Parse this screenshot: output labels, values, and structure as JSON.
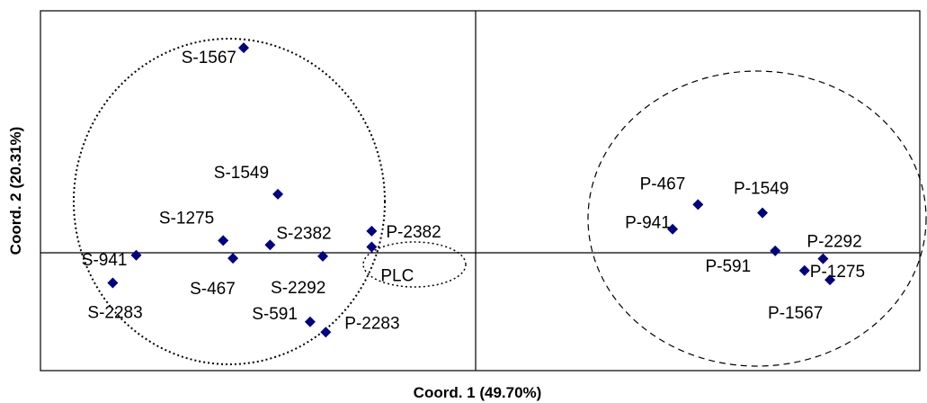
{
  "chart_data": {
    "type": "scatter",
    "xlabel": "Coord. 1 (49.70%)",
    "ylabel": "Coord. 2 (20.31%)",
    "xlim": [
      -0.42,
      0.48
    ],
    "ylim": [
      -0.25,
      0.48
    ],
    "grid": false,
    "reference_lines": [
      "x = 0",
      "y = 0"
    ],
    "marker": "diamond",
    "marker_color": "#000080",
    "points": [
      {
        "label": "S-1567",
        "x": -0.212,
        "y": 0.405
      },
      {
        "label": "S-1549",
        "x": -0.177,
        "y": 0.108
      },
      {
        "label": "S-1275",
        "x": -0.233,
        "y": 0.014
      },
      {
        "label": "S-2382",
        "x": -0.185,
        "y": 0.005
      },
      {
        "label": "S-941",
        "x": -0.322,
        "y": -0.016
      },
      {
        "label": "S-467",
        "x": -0.223,
        "y": -0.022
      },
      {
        "label": "S-2292",
        "x": -0.131,
        "y": -0.018
      },
      {
        "label": "S-2283",
        "x": -0.346,
        "y": -0.072
      },
      {
        "label": "S-591",
        "x": -0.144,
        "y": -0.151
      },
      {
        "label": "P-2283",
        "x": -0.128,
        "y": -0.172
      },
      {
        "label": "P-2382",
        "x": -0.081,
        "y": 0.033
      },
      {
        "label": "PLC",
        "x": -0.081,
        "y": 0.001
      },
      {
        "label": "P-467",
        "x": 0.253,
        "y": 0.087
      },
      {
        "label": "P-1549",
        "x": 0.319,
        "y": 0.07
      },
      {
        "label": "P-941",
        "x": 0.227,
        "y": 0.037
      },
      {
        "label": "P-2292",
        "x": 0.381,
        "y": -0.023
      },
      {
        "label": "P-591",
        "x": 0.332,
        "y": -0.007
      },
      {
        "label": "P-1275",
        "x": 0.362,
        "y": -0.047
      },
      {
        "label": "P-1567",
        "x": 0.388,
        "y": -0.066
      }
    ],
    "groups": [
      {
        "style": "dotted",
        "members": [
          "S-1567",
          "S-1549",
          "S-1275",
          "S-2382",
          "S-941",
          "S-467",
          "S-2292",
          "S-2283",
          "S-591",
          "P-2283",
          "P-2382"
        ]
      },
      {
        "style": "dotted",
        "members": [
          "PLC"
        ]
      },
      {
        "style": "dashed",
        "members": [
          "P-467",
          "P-1549",
          "P-941",
          "P-2292",
          "P-591",
          "P-1275",
          "P-1567"
        ]
      }
    ]
  }
}
